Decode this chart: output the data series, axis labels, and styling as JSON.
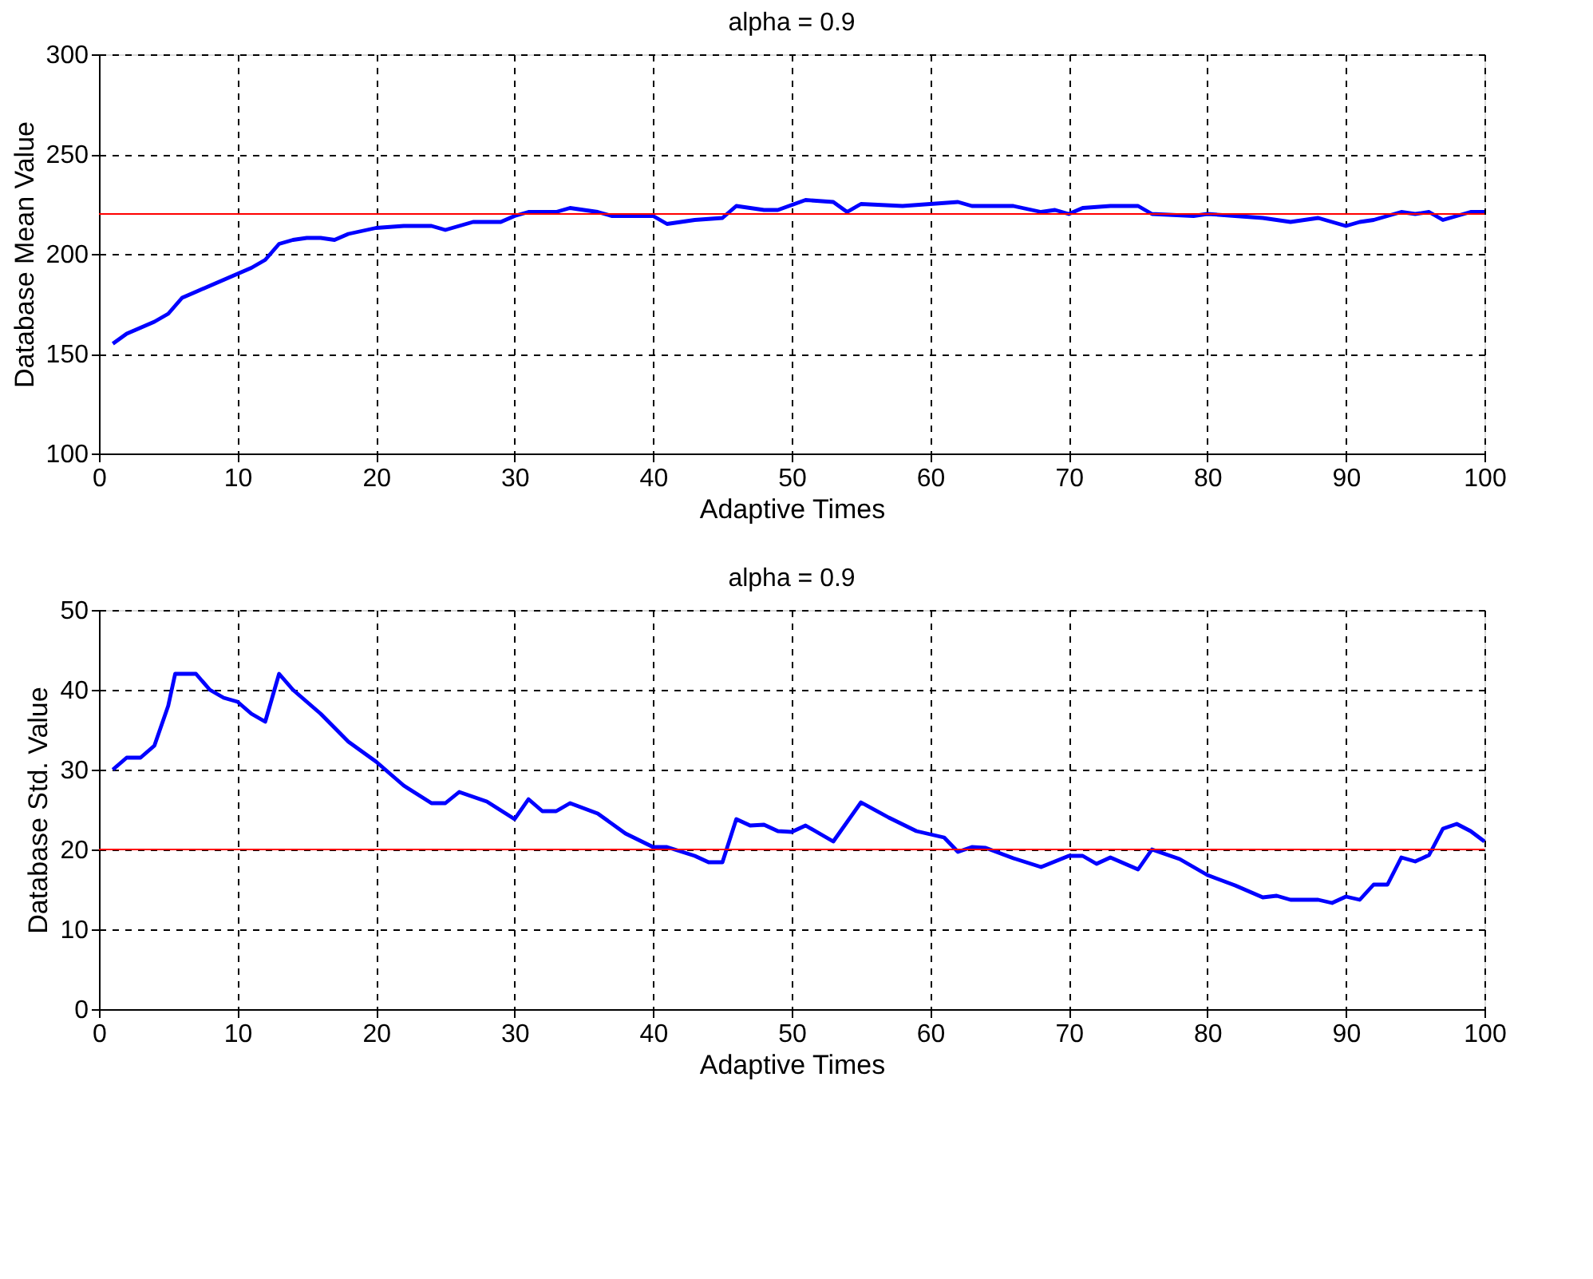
{
  "chart_data": [
    {
      "type": "line",
      "title": "alpha = 0.9",
      "xlabel": "Adaptive Times",
      "ylabel": "Database Mean Value",
      "xlim": [
        0,
        100
      ],
      "xticks": [
        0,
        10,
        20,
        30,
        40,
        50,
        60,
        70,
        80,
        90,
        100
      ],
      "ylim": [
        100,
        300
      ],
      "yticks": [
        100,
        150,
        200,
        250,
        300
      ],
      "grid": true,
      "series": [
        {
          "color": "#0000ff",
          "x": [
            1,
            2,
            3,
            4,
            5,
            6,
            7,
            8,
            9,
            10,
            11,
            12,
            13,
            14,
            15,
            16,
            17,
            18,
            20,
            22,
            24,
            25,
            27,
            29,
            30,
            31,
            33,
            34,
            36,
            37,
            40,
            41,
            43,
            45,
            46,
            48,
            49,
            51,
            53,
            54,
            55,
            58,
            60,
            62,
            63,
            66,
            68,
            69,
            70,
            71,
            73,
            75,
            76,
            79,
            80,
            82,
            84,
            86,
            88,
            90,
            91,
            92,
            93,
            94,
            95,
            96,
            97,
            98,
            99,
            100
          ],
          "values": [
            155,
            160,
            163,
            166,
            170,
            178,
            181,
            184,
            187,
            190,
            193,
            197,
            205,
            207,
            208,
            208,
            207,
            210,
            213,
            214,
            214,
            212,
            216,
            216,
            219,
            221,
            221,
            223,
            221,
            219,
            219,
            215,
            217,
            218,
            224,
            222,
            222,
            227,
            226,
            221,
            225,
            224,
            225,
            226,
            224,
            224,
            221,
            222,
            220,
            223,
            224,
            224,
            220,
            219,
            220,
            219,
            218,
            216,
            218,
            214,
            216,
            217,
            219,
            221,
            220,
            221,
            217,
            219,
            221,
            221
          ]
        }
      ],
      "ref_lines": [
        {
          "axis": "y",
          "value": 220,
          "color": "#ff0000"
        }
      ]
    },
    {
      "type": "line",
      "title": "alpha = 0.9",
      "xlabel": "Adaptive Times",
      "ylabel": "Database Std. Value",
      "xlim": [
        0,
        100
      ],
      "xticks": [
        0,
        10,
        20,
        30,
        40,
        50,
        60,
        70,
        80,
        90,
        100
      ],
      "ylim": [
        0,
        50
      ],
      "yticks": [
        0,
        10,
        20,
        30,
        40,
        50
      ],
      "grid": true,
      "series": [
        {
          "color": "#0000ff",
          "x": [
            1,
            2,
            3,
            4,
            5,
            5.5,
            7,
            8,
            9,
            10,
            11,
            12,
            13,
            14,
            16,
            18,
            20,
            22,
            24,
            25,
            26,
            28,
            30,
            31,
            32,
            33,
            34,
            36,
            38,
            40,
            41,
            43,
            44,
            45,
            46,
            47,
            48,
            49,
            50,
            51,
            53,
            55,
            57,
            59,
            61,
            62,
            63,
            64,
            66,
            68,
            70,
            71,
            72,
            73,
            75,
            76,
            78,
            80,
            82,
            84,
            85,
            86,
            88,
            89,
            90,
            91,
            92,
            93,
            94,
            95,
            96,
            97,
            98,
            99,
            100
          ],
          "values": [
            30,
            31.5,
            31.5,
            33,
            38,
            42,
            42,
            40,
            39,
            38.5,
            37,
            36,
            42,
            40,
            37,
            33.5,
            31,
            28,
            25.8,
            25.8,
            27.2,
            26,
            23.8,
            26.3,
            24.8,
            24.8,
            25.8,
            24.5,
            22,
            20.3,
            20.3,
            19.2,
            18.4,
            18.4,
            23.8,
            23,
            23.1,
            22.3,
            22.2,
            23,
            21,
            25.9,
            24,
            22.3,
            21.5,
            19.7,
            20.3,
            20.2,
            18.9,
            17.8,
            19.2,
            19.2,
            18.2,
            19,
            17.5,
            20,
            18.8,
            16.8,
            15.5,
            14,
            14.2,
            13.7,
            13.7,
            13.3,
            14.1,
            13.7,
            15.6,
            15.6,
            19,
            18.5,
            19.3,
            22.6,
            23.2,
            22.3,
            21
          ]
        }
      ],
      "ref_lines": [
        {
          "axis": "y",
          "value": 20,
          "color": "#ff0000"
        }
      ]
    }
  ]
}
